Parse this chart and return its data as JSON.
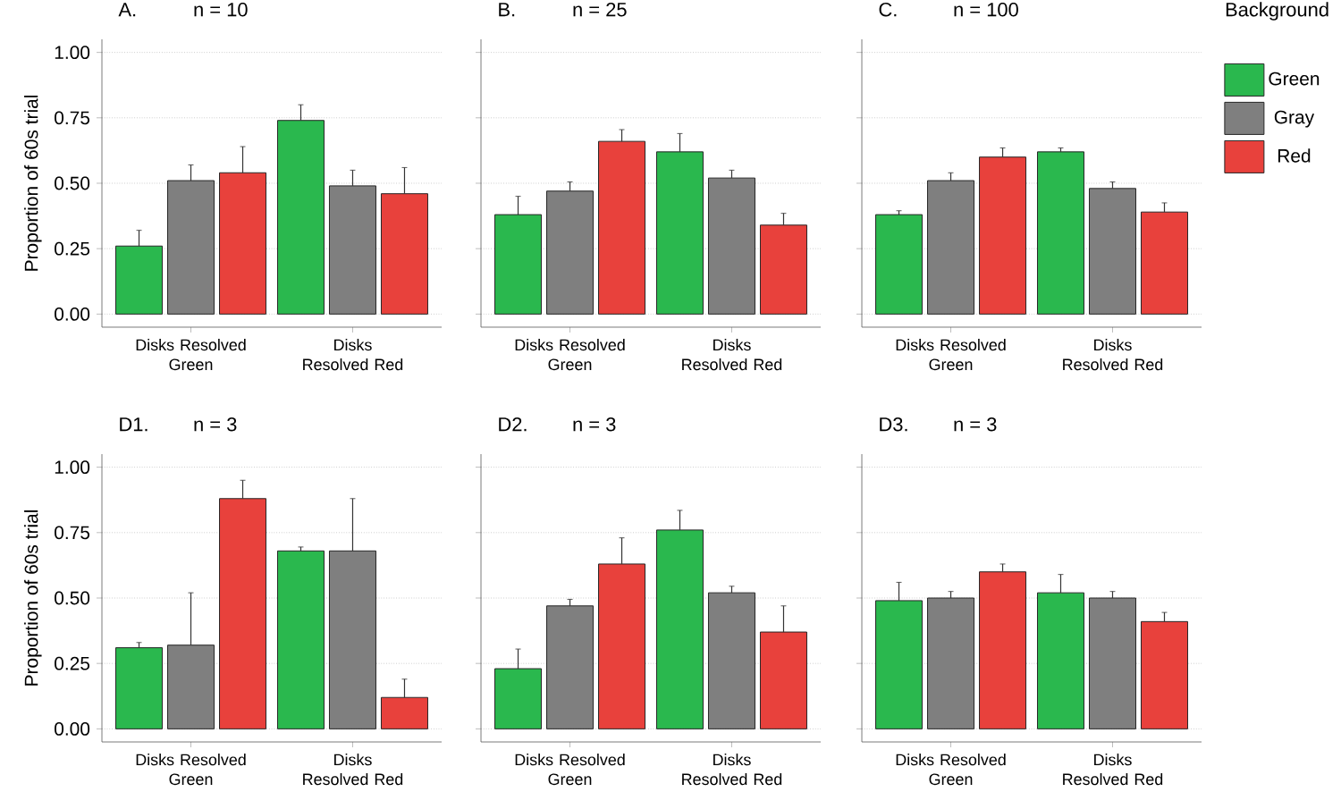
{
  "chart_data": [
    {
      "type": "bar",
      "title": "A.",
      "subtitle": "n = 10",
      "ylabel": "Proportion of 60s trial",
      "categories": [
        "Disks Resolved Green",
        "Disks Resolved Red"
      ],
      "series": [
        {
          "color": "#2ab84e",
          "values": [
            0.26,
            0.74
          ],
          "errors": [
            0.06,
            0.06
          ]
        },
        {
          "color": "#7f7f7f",
          "values": [
            0.51,
            0.49
          ],
          "errors": [
            0.06,
            0.06
          ]
        },
        {
          "color": "#e8413c",
          "values": [
            0.54,
            0.46
          ],
          "errors": [
            0.1,
            0.1
          ]
        }
      ],
      "ylim": [
        -0.05,
        1.05
      ],
      "yticks": [
        {
          "value": 0,
          "label": "0.00"
        },
        {
          "value": 0.25,
          "label": "0.25"
        },
        {
          "value": 0.5,
          "label": "0.50"
        },
        {
          "value": 0.75,
          "label": "0.75"
        },
        {
          "value": 1,
          "label": "1.00"
        }
      ],
      "grid": "y"
    },
    {
      "type": "bar",
      "title": "B.",
      "subtitle": "n = 25",
      "categories": [
        "Disks Resolved Green",
        "Disks Resolved Red"
      ],
      "series": [
        {
          "color": "#2ab84e",
          "values": [
            0.38,
            0.62
          ],
          "errors": [
            0.07,
            0.07
          ]
        },
        {
          "color": "#7f7f7f",
          "values": [
            0.47,
            0.52
          ],
          "errors": [
            0.035,
            0.03
          ]
        },
        {
          "color": "#e8413c",
          "values": [
            0.66,
            0.34
          ],
          "errors": [
            0.045,
            0.045
          ]
        }
      ],
      "ylim": [
        -0.05,
        1.05
      ],
      "yticks": [
        {
          "value": 0,
          "label": null
        },
        {
          "value": 0.25,
          "label": null
        },
        {
          "value": 0.5,
          "label": null
        },
        {
          "value": 0.75,
          "label": null
        },
        {
          "value": 1,
          "label": null
        }
      ],
      "grid": "y",
      "tick_labels": "x"
    },
    {
      "type": "bar",
      "title": "C.",
      "subtitle": "n = 100",
      "legend_title": "Background",
      "legend": "top right",
      "categories": [
        "Disks Resolved Green",
        "Disks Resolved Red"
      ],
      "series": [
        {
          "name": "Green",
          "color": "#2ab84e",
          "values": [
            0.38,
            0.62
          ],
          "errors": [
            0.015,
            0.015
          ]
        },
        {
          "name": "Gray",
          "color": "#7f7f7f",
          "values": [
            0.51,
            0.48
          ],
          "errors": [
            0.03,
            0.025
          ]
        },
        {
          "name": "Red",
          "color": "#e8413c",
          "values": [
            0.6,
            0.39
          ],
          "errors": [
            0.035,
            0.035
          ]
        }
      ],
      "ylim": [
        -0.05,
        1.05
      ],
      "yticks": [
        {
          "value": 0,
          "label": null
        },
        {
          "value": 0.25,
          "label": null
        },
        {
          "value": 0.5,
          "label": null
        },
        {
          "value": 0.75,
          "label": null
        },
        {
          "value": 1,
          "label": null
        }
      ],
      "grid": "y",
      "tick_labels": "x"
    },
    {
      "type": "bar",
      "title": "D1.",
      "subtitle": "n = 3",
      "ylabel": "Proportion of 60s trial",
      "categories": [
        "Disks Resolved Green",
        "Disks Resolved Red"
      ],
      "series": [
        {
          "color": "#2ab84e",
          "values": [
            0.31,
            0.68
          ],
          "errors": [
            0.02,
            0.015
          ]
        },
        {
          "color": "#7f7f7f",
          "values": [
            0.32,
            0.68
          ],
          "errors": [
            0.2,
            0.2
          ]
        },
        {
          "color": "#e8413c",
          "values": [
            0.88,
            0.12
          ],
          "errors": [
            0.07,
            0.07
          ]
        }
      ],
      "ylim": [
        -0.05,
        1.05
      ],
      "yticks": [
        {
          "value": 0,
          "label": "0.00"
        },
        {
          "value": 0.25,
          "label": "0.25"
        },
        {
          "value": 0.5,
          "label": "0.50"
        },
        {
          "value": 0.75,
          "label": "0.75"
        },
        {
          "value": 1,
          "label": "1.00"
        }
      ],
      "grid": "y"
    },
    {
      "type": "bar",
      "title": "D2.",
      "subtitle": "n = 3",
      "categories": [
        "Disks Resolved Green",
        "Disks Resolved Red"
      ],
      "series": [
        {
          "color": "#2ab84e",
          "values": [
            0.23,
            0.76
          ],
          "errors": [
            0.075,
            0.075
          ]
        },
        {
          "color": "#7f7f7f",
          "values": [
            0.47,
            0.52
          ],
          "errors": [
            0.025,
            0.025
          ]
        },
        {
          "color": "#e8413c",
          "values": [
            0.63,
            0.37
          ],
          "errors": [
            0.1,
            0.1
          ]
        }
      ],
      "ylim": [
        -0.05,
        1.05
      ],
      "yticks": [
        {
          "value": 0,
          "label": null
        },
        {
          "value": 0.25,
          "label": null
        },
        {
          "value": 0.5,
          "label": null
        },
        {
          "value": 0.75,
          "label": null
        },
        {
          "value": 1,
          "label": null
        }
      ],
      "grid": "y",
      "tick_labels": "x"
    },
    {
      "type": "bar",
      "title": "D3.",
      "subtitle": "n = 3",
      "categories": [
        "Disks Resolved Green",
        "Disks Resolved Red"
      ],
      "series": [
        {
          "color": "#2ab84e",
          "values": [
            0.49,
            0.52
          ],
          "errors": [
            0.07,
            0.07
          ]
        },
        {
          "color": "#7f7f7f",
          "values": [
            0.5,
            0.5
          ],
          "errors": [
            0.025,
            0.025
          ]
        },
        {
          "color": "#e8413c",
          "values": [
            0.6,
            0.41
          ],
          "errors": [
            0.03,
            0.035
          ]
        }
      ],
      "ylim": [
        -0.05,
        1.05
      ],
      "yticks": [
        {
          "value": 0,
          "label": null
        },
        {
          "value": 0.25,
          "label": null
        },
        {
          "value": 0.5,
          "label": null
        },
        {
          "value": 0.75,
          "label": null
        },
        {
          "value": 1,
          "label": null
        }
      ],
      "grid": "y",
      "tick_labels": "x"
    }
  ]
}
